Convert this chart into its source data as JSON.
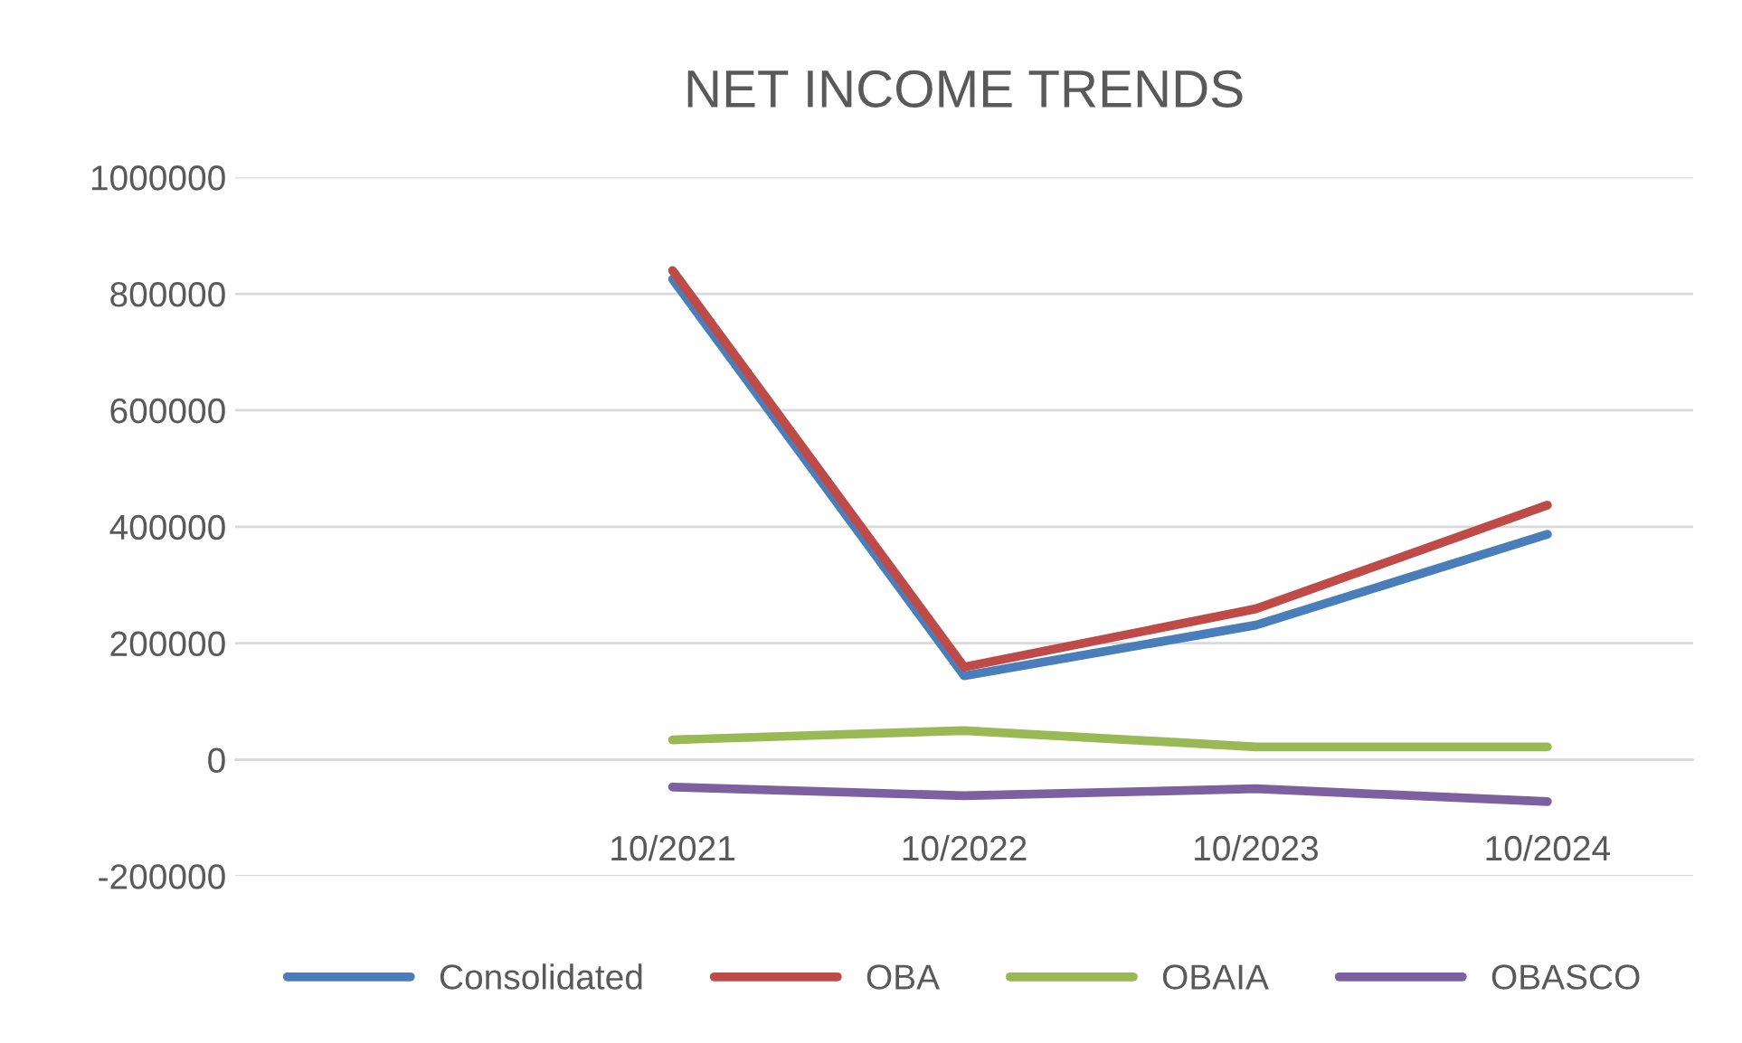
{
  "chart_data": {
    "type": "line",
    "title": "NET INCOME TRENDS",
    "categories": [
      null,
      "10/2021",
      "10/2022",
      "10/2023",
      "10/2024"
    ],
    "series": [
      {
        "name": "Consolidated",
        "color": "#4a7ebb",
        "values": [
          null,
          825000,
          144000,
          231000,
          387000
        ]
      },
      {
        "name": "OBA",
        "color": "#be4b48",
        "values": [
          null,
          840000,
          159000,
          259000,
          437000
        ]
      },
      {
        "name": "OBAIA",
        "color": "#98b954",
        "values": [
          null,
          34000,
          50000,
          22000,
          22000
        ]
      },
      {
        "name": "OBASCO",
        "color": "#7d60a0",
        "values": [
          null,
          -47000,
          -62000,
          -50000,
          -72000
        ]
      }
    ],
    "ylim": [
      -200000,
      1000000
    ],
    "yticks": [
      -200000,
      0,
      200000,
      400000,
      600000,
      800000,
      1000000
    ],
    "grid": "y",
    "legend": "bottom",
    "marker": "none",
    "line_style": "solid"
  }
}
